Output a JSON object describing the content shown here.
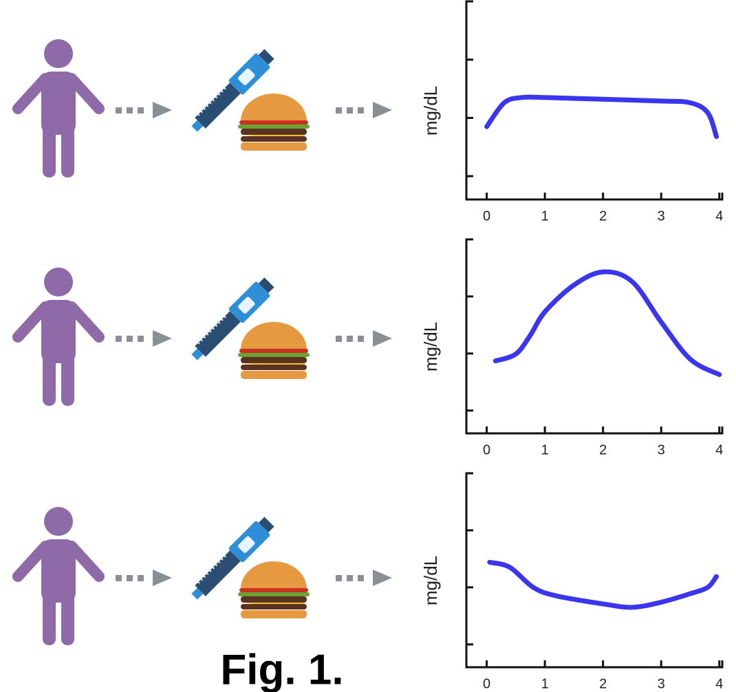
{
  "caption": "Fig. 1.",
  "chart_data": [
    {
      "type": "line",
      "y_label": "mg/dL",
      "color": "#3a35ee",
      "x": [
        0,
        0.3,
        0.6,
        1,
        2,
        3,
        3.5,
        3.8,
        3.95
      ],
      "values": [
        1.85,
        2.26,
        2.35,
        2.35,
        2.32,
        2.29,
        2.26,
        2.09,
        1.68
      ],
      "xlim": [
        -0.35,
        4.05
      ],
      "xticks": [
        0,
        1,
        2,
        3,
        4
      ],
      "ylim": [
        0.6,
        4
      ],
      "yticks": [
        1,
        2,
        3
      ]
    },
    {
      "type": "line",
      "y_label": "mg/dL",
      "color": "#3a35ee",
      "x": [
        0.15,
        0.5,
        0.75,
        1,
        1.5,
        2,
        2.5,
        3,
        3.5,
        4
      ],
      "values": [
        1.87,
        1.99,
        2.32,
        2.73,
        3.2,
        3.43,
        3.26,
        2.55,
        1.9,
        1.63
      ],
      "xlim": [
        -0.35,
        4.05
      ],
      "xticks": [
        0,
        1,
        2,
        3,
        4
      ],
      "ylim": [
        0.6,
        4
      ],
      "yticks": [
        1,
        2,
        3
      ]
    },
    {
      "type": "line",
      "y_label": "mg/dL",
      "color": "#3a35ee",
      "x": [
        0.05,
        0.4,
        0.8,
        1.2,
        2,
        2.5,
        3,
        3.5,
        3.8,
        3.95
      ],
      "values": [
        2.44,
        2.35,
        2.0,
        1.85,
        1.71,
        1.65,
        1.74,
        1.89,
        2.0,
        2.19
      ],
      "xlim": [
        -0.35,
        4.05
      ],
      "xticks": [
        0,
        1,
        2,
        3,
        4
      ],
      "ylim": [
        0.6,
        4
      ],
      "yticks": [
        1,
        2,
        3
      ]
    }
  ]
}
